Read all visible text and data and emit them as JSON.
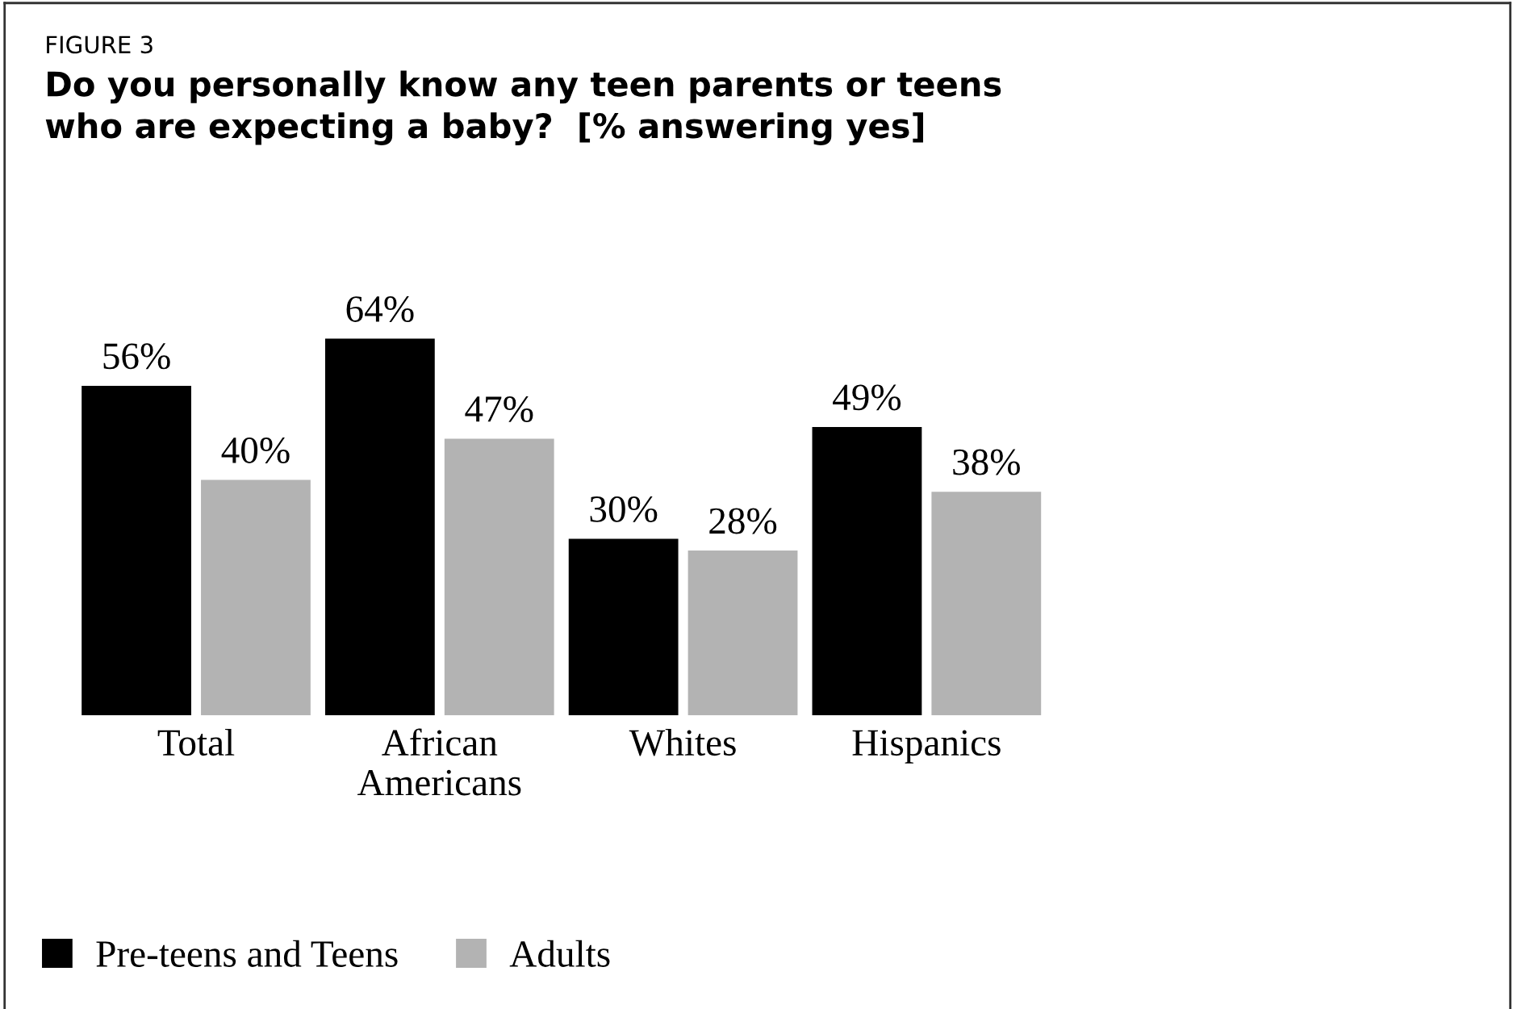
{
  "chart_data": {
    "type": "bar",
    "title": "Do you personally know any teen parents or teens\nwho are expecting a baby?  [% answering yes]",
    "annotations": [
      "FIGURE 3"
    ],
    "categories": [
      "Total",
      "African\nAmericans",
      "Whites",
      "Hispanics"
    ],
    "series": [
      {
        "name": "Pre-teens and Teens",
        "color": "#000000",
        "values": [
          56,
          64,
          30,
          49
        ],
        "value_labels": [
          "56%",
          "64%",
          "30%",
          "49%"
        ]
      },
      {
        "name": "Adults",
        "color": "#b3b3b3",
        "values": [
          40,
          47,
          28,
          38
        ],
        "value_labels": [
          "40%",
          "47%",
          "28%",
          "38%"
        ]
      }
    ],
    "tick_labels": "x",
    "grid": false,
    "legend": "bottom left"
  }
}
